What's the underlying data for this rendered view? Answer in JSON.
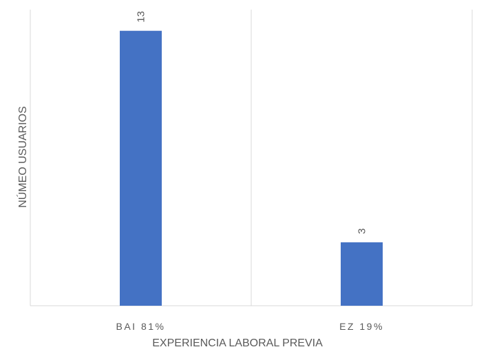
{
  "chart_data": {
    "type": "bar",
    "categories": [
      "BAI 81%",
      "EZ 19%"
    ],
    "values": [
      13,
      3
    ],
    "xlabel": "EXPERIENCIA LABORAL PREVIA",
    "ylabel": "NÚMEO USUARIOS",
    "ylim": [
      0,
      14
    ],
    "grid": false,
    "legend": "none",
    "data_labels": [
      "13",
      "3"
    ],
    "colors": {
      "bar": "#4472C4",
      "axis": "#D9D9D9",
      "text": "#595959"
    }
  }
}
